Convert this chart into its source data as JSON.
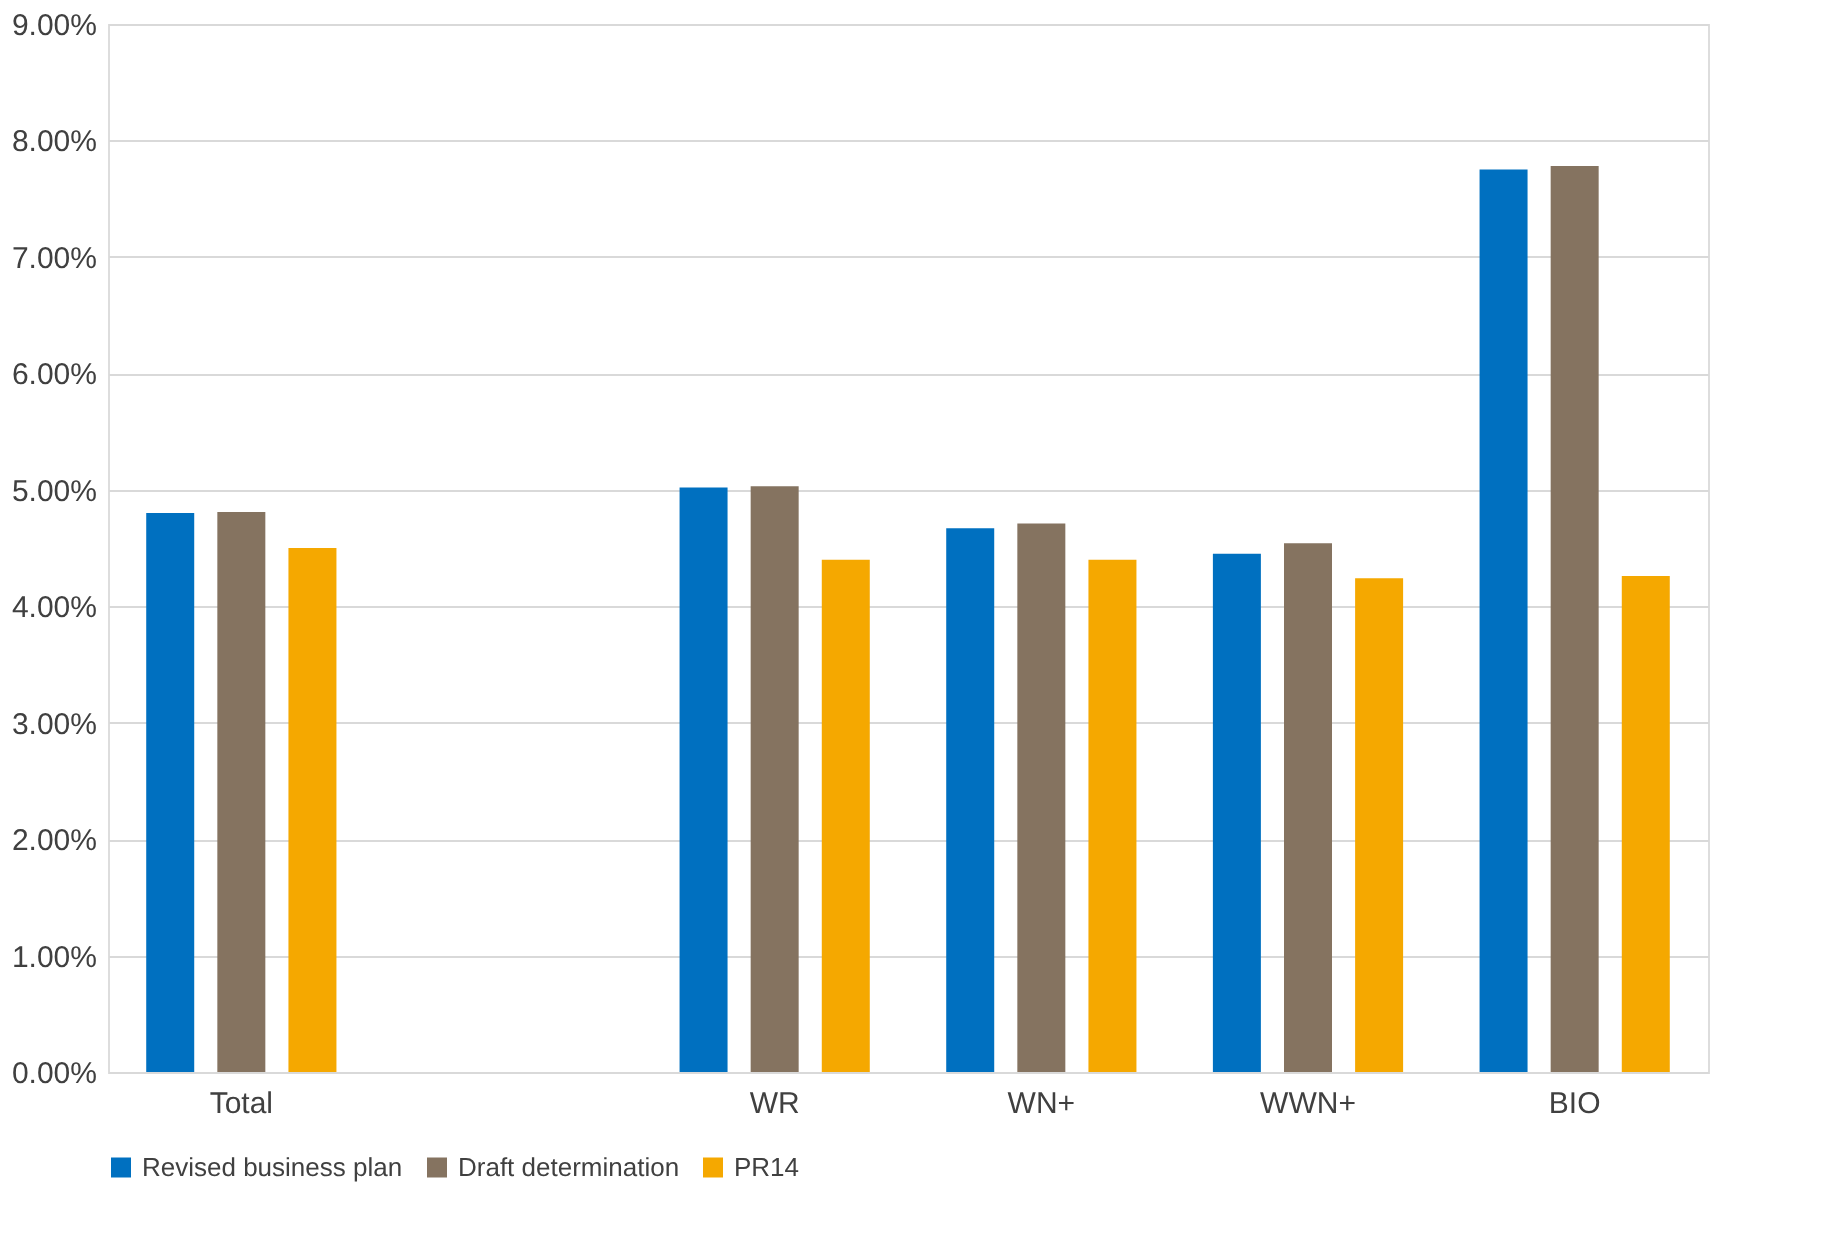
{
  "chart_data": {
    "type": "bar",
    "categories": [
      "Total",
      null,
      "WR",
      "WN+",
      "WWN+",
      "BIO"
    ],
    "series": [
      {
        "name": "Revised business plan",
        "color": "#0070c0",
        "values": [
          4.8,
          null,
          5.02,
          4.67,
          4.45,
          7.75
        ]
      },
      {
        "name": "Draft determination",
        "color": "#857360",
        "values": [
          4.81,
          null,
          5.03,
          4.71,
          4.54,
          7.78
        ]
      },
      {
        "name": "PR14",
        "color": "#f5a800",
        "values": [
          4.5,
          null,
          4.4,
          4.4,
          4.24,
          4.26
        ]
      }
    ],
    "ylim": [
      0,
      9
    ],
    "yticks": [
      {
        "value": 0,
        "label": "0.00%"
      },
      {
        "value": 1,
        "label": "1.00%"
      },
      {
        "value": 2,
        "label": "2.00%"
      },
      {
        "value": 3,
        "label": "3.00%"
      },
      {
        "value": 4,
        "label": "4.00%"
      },
      {
        "value": 5,
        "label": "5.00%"
      },
      {
        "value": 6,
        "label": "6.00%"
      },
      {
        "value": 7,
        "label": "7.00%"
      },
      {
        "value": 8,
        "label": "8.00%"
      },
      {
        "value": 9,
        "label": "9.00%"
      }
    ],
    "grid": "y",
    "legend": "bottom"
  }
}
